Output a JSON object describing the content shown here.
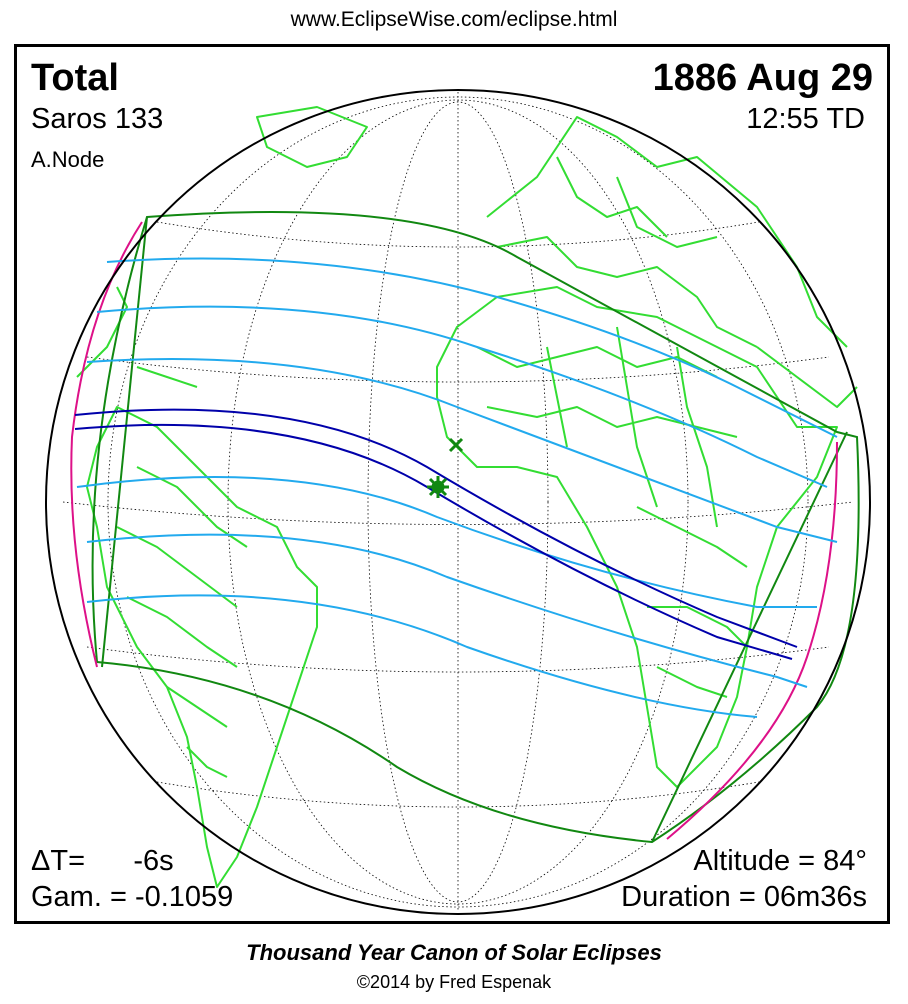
{
  "header": {
    "url": "www.EclipseWise.com/eclipse.html"
  },
  "eclipse": {
    "type": "Total",
    "saros": "Saros 133",
    "node": "A.Node",
    "date": "1886 Aug 29",
    "time": "12:55 TD",
    "delta_t": "ΔT=      -6s",
    "gamma": "Gam. = -0.1059",
    "altitude": "Altitude = 84°",
    "duration": "Duration = 06m36s"
  },
  "footer": {
    "canon": "Thousand Year Canon of Solar Eclipses",
    "copyright": "©2014 by Fred Espenak"
  },
  "colors": {
    "land": "#33dd33",
    "penumbra_limit": "#118811",
    "latitude_lines": "#22aaee",
    "totality_path": "#0000aa",
    "rise_set": "#dd1188",
    "grid": "#000000"
  },
  "markers": {
    "greatest_eclipse": "asterisk-icon",
    "greatest_duration": "x-icon"
  }
}
